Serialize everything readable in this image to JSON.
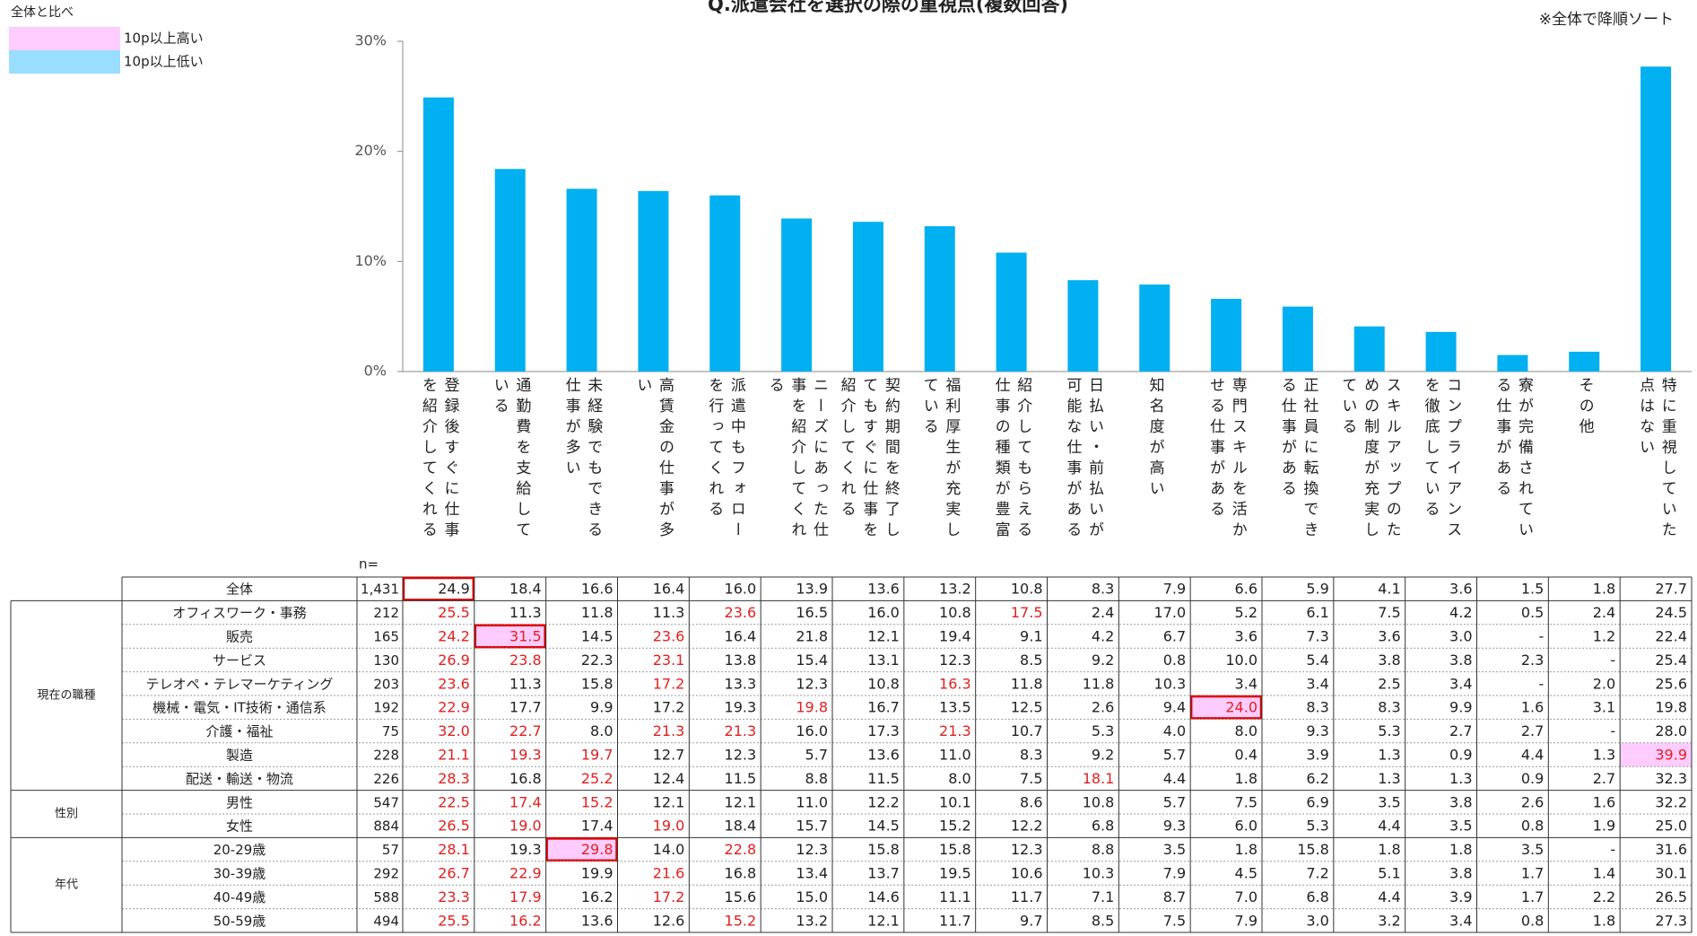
{
  "chart_data": {
    "type": "bar",
    "title": "Q.派遣会社を選択の際の重視点(複数回答)",
    "note": "※全体で降順ソート",
    "categories": [
      "登録後すぐに仕事を紹介してくれる",
      "通勤費を支給している",
      "未経験でもできる仕事が多い",
      "高賃金の仕事が多い",
      "派遣中もフォローを行ってくれる",
      "ニーズにあった仕事を紹介してくれる",
      "契約期間を終了してもすぐに仕事を紹介してくれる",
      "福利厚生が充実している",
      "紹介してもらえる仕事の種類が豊富",
      "日払い・前払いが可能な仕事がある",
      "知名度が高い",
      "専門スキルを活かせる仕事がある",
      "正社員に転換できる仕事がある",
      "スキルアップのための制度が充実している",
      "コンプライアンスを徹底している",
      "寮が完備されている仕事がある",
      "その他",
      "特に重視していた点はない"
    ],
    "values": [
      24.9,
      18.4,
      16.6,
      16.4,
      16.0,
      13.9,
      13.6,
      13.2,
      10.8,
      8.3,
      7.9,
      6.6,
      5.9,
      4.1,
      3.6,
      1.5,
      1.8,
      27.7
    ],
    "color": "#00b0f0",
    "ylim": [
      0,
      30
    ],
    "yticks": [
      {
        "value": 0,
        "label": "0%"
      },
      {
        "value": 10,
        "label": "10%"
      },
      {
        "value": 20,
        "label": "20%"
      },
      {
        "value": 30,
        "label": "30%"
      }
    ],
    "grid": false
  },
  "legend": {
    "title": "全体と比べ",
    "items": [
      {
        "label": "10p以上高い",
        "color": "#ffccff"
      },
      {
        "label": "10p以上低い",
        "color": "#99ddff"
      }
    ]
  },
  "table": {
    "n_label": "n=",
    "total_row": {
      "label": "全体",
      "n": "1,431",
      "cells": [
        "24.9",
        "18.4",
        "16.6",
        "16.4",
        "16.0",
        "13.9",
        "13.6",
        "13.2",
        "10.8",
        "8.3",
        "7.9",
        "6.6",
        "5.9",
        "4.1",
        "3.6",
        "1.5",
        "1.8",
        "27.7"
      ],
      "boxed": [
        0
      ]
    },
    "groups": [
      {
        "label": "現在の職種",
        "rows": [
          {
            "label": "オフィスワーク・事務",
            "n": "212",
            "cells": [
              "25.5",
              "11.3",
              "11.8",
              "11.3",
              "23.6",
              "16.5",
              "16.0",
              "10.8",
              "17.5",
              "2.4",
              "17.0",
              "5.2",
              "6.1",
              "7.5",
              "4.2",
              "0.5",
              "2.4",
              "24.5"
            ],
            "red": [
              0,
              4,
              8
            ]
          },
          {
            "label": "販売",
            "n": "165",
            "cells": [
              "24.2",
              "31.5",
              "14.5",
              "23.6",
              "16.4",
              "21.8",
              "12.1",
              "19.4",
              "9.1",
              "4.2",
              "6.7",
              "3.6",
              "7.3",
              "3.6",
              "3.0",
              "-",
              "1.2",
              "22.4"
            ],
            "red": [
              0,
              1,
              3
            ],
            "pink": [
              1
            ],
            "boxed": [
              1
            ]
          },
          {
            "label": "サービス",
            "n": "130",
            "cells": [
              "26.9",
              "23.8",
              "22.3",
              "23.1",
              "13.8",
              "15.4",
              "13.1",
              "12.3",
              "8.5",
              "9.2",
              "0.8",
              "10.0",
              "5.4",
              "3.8",
              "3.8",
              "2.3",
              "-",
              "25.4"
            ],
            "red": [
              0,
              1,
              3
            ]
          },
          {
            "label": "テレオペ・テレマーケティング",
            "n": "203",
            "cells": [
              "23.6",
              "11.3",
              "15.8",
              "17.2",
              "13.3",
              "12.3",
              "10.8",
              "16.3",
              "11.8",
              "11.8",
              "10.3",
              "3.4",
              "3.4",
              "2.5",
              "3.4",
              "-",
              "2.0",
              "25.6"
            ],
            "red": [
              0,
              3,
              7
            ]
          },
          {
            "label": "機械・電気・IT技術・通信系",
            "n": "192",
            "cells": [
              "22.9",
              "17.7",
              "9.9",
              "17.2",
              "19.3",
              "19.8",
              "16.7",
              "13.5",
              "12.5",
              "2.6",
              "9.4",
              "24.0",
              "8.3",
              "8.3",
              "9.9",
              "1.6",
              "3.1",
              "19.8"
            ],
            "red": [
              0,
              5,
              11
            ],
            "pink": [
              11
            ],
            "boxed": [
              11
            ]
          },
          {
            "label": "介護・福祉",
            "n": "75",
            "cells": [
              "32.0",
              "22.7",
              "8.0",
              "21.3",
              "21.3",
              "16.0",
              "17.3",
              "21.3",
              "10.7",
              "5.3",
              "4.0",
              "8.0",
              "9.3",
              "5.3",
              "2.7",
              "2.7",
              "-",
              "28.0"
            ],
            "red": [
              0,
              1,
              3,
              4,
              7
            ]
          },
          {
            "label": "製造",
            "n": "228",
            "cells": [
              "21.1",
              "19.3",
              "19.7",
              "12.7",
              "12.3",
              "5.7",
              "13.6",
              "11.0",
              "8.3",
              "9.2",
              "5.7",
              "0.4",
              "3.9",
              "1.3",
              "0.9",
              "4.4",
              "1.3",
              "39.9"
            ],
            "red": [
              0,
              1,
              2,
              17
            ],
            "pink": [
              17
            ]
          },
          {
            "label": "配送・輸送・物流",
            "n": "226",
            "cells": [
              "28.3",
              "16.8",
              "25.2",
              "12.4",
              "11.5",
              "8.8",
              "11.5",
              "8.0",
              "7.5",
              "18.1",
              "4.4",
              "1.8",
              "6.2",
              "1.3",
              "1.3",
              "0.9",
              "2.7",
              "32.3"
            ],
            "red": [
              0,
              2,
              9
            ]
          }
        ]
      },
      {
        "label": "性別",
        "rows": [
          {
            "label": "男性",
            "n": "547",
            "cells": [
              "22.5",
              "17.4",
              "15.2",
              "12.1",
              "12.1",
              "11.0",
              "12.2",
              "10.1",
              "8.6",
              "10.8",
              "5.7",
              "7.5",
              "6.9",
              "3.5",
              "3.8",
              "2.6",
              "1.6",
              "32.2"
            ],
            "red": [
              0,
              1,
              2
            ]
          },
          {
            "label": "女性",
            "n": "884",
            "cells": [
              "26.5",
              "19.0",
              "17.4",
              "19.0",
              "18.4",
              "15.7",
              "14.5",
              "15.2",
              "12.2",
              "6.8",
              "9.3",
              "6.0",
              "5.3",
              "4.4",
              "3.5",
              "0.8",
              "1.9",
              "25.0"
            ],
            "red": [
              0,
              1,
              3
            ]
          }
        ]
      },
      {
        "label": "年代",
        "rows": [
          {
            "label": "20-29歳",
            "n": "57",
            "cells": [
              "28.1",
              "19.3",
              "29.8",
              "14.0",
              "22.8",
              "12.3",
              "15.8",
              "15.8",
              "12.3",
              "8.8",
              "3.5",
              "1.8",
              "15.8",
              "1.8",
              "1.8",
              "3.5",
              "-",
              "31.6"
            ],
            "red": [
              0,
              2,
              4
            ],
            "pink": [
              2
            ],
            "boxed": [
              2
            ]
          },
          {
            "label": "30-39歳",
            "n": "292",
            "cells": [
              "26.7",
              "22.9",
              "19.9",
              "21.6",
              "16.8",
              "13.4",
              "13.7",
              "19.5",
              "10.6",
              "10.3",
              "7.9",
              "4.5",
              "7.2",
              "5.1",
              "3.8",
              "1.7",
              "1.4",
              "30.1"
            ],
            "red": [
              0,
              1,
              3
            ]
          },
          {
            "label": "40-49歳",
            "n": "588",
            "cells": [
              "23.3",
              "17.9",
              "16.2",
              "17.2",
              "15.6",
              "15.0",
              "14.6",
              "11.1",
              "11.7",
              "7.1",
              "8.7",
              "7.0",
              "6.8",
              "4.4",
              "3.9",
              "1.7",
              "2.2",
              "26.5"
            ],
            "red": [
              0,
              1,
              3
            ]
          },
          {
            "label": "50-59歳",
            "n": "494",
            "cells": [
              "25.5",
              "16.2",
              "13.6",
              "12.6",
              "15.2",
              "13.2",
              "12.1",
              "11.7",
              "9.7",
              "8.5",
              "7.5",
              "7.9",
              "3.0",
              "3.2",
              "3.4",
              "0.8",
              "1.8",
              "27.3"
            ],
            "red": [
              0,
              1,
              4
            ]
          }
        ]
      }
    ]
  }
}
